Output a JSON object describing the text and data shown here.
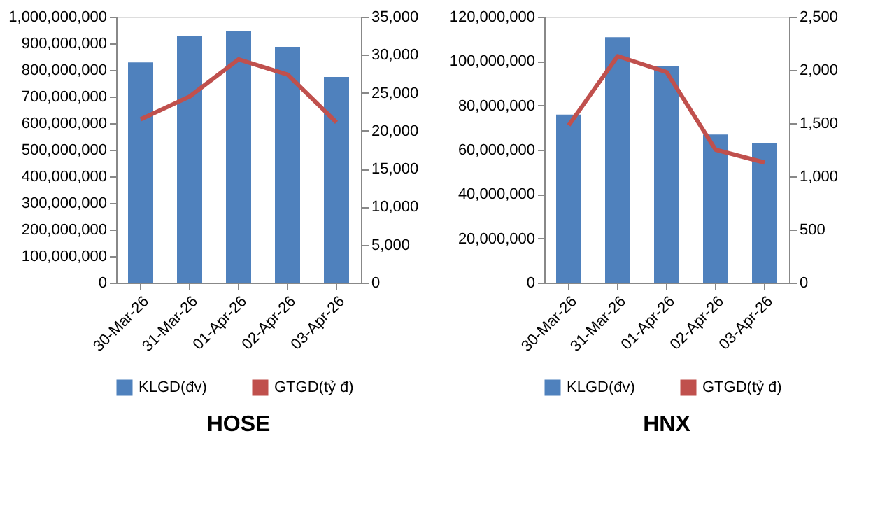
{
  "chart_data": [
    {
      "type": "bar",
      "title": "HOSE",
      "categories": [
        "30-Mar-26",
        "31-Mar-26",
        "01-Apr-26",
        "02-Apr-26",
        "03-Apr-26"
      ],
      "series": [
        {
          "name": "KLGD(đv)",
          "color": "#4f81bd",
          "values": [
            828000000,
            928000000,
            946000000,
            887000000,
            774000000
          ]
        },
        {
          "name": "GTGD(tỷ  đ)",
          "color": "#c0504d",
          "type": "line",
          "axis": "y2",
          "values": [
            21500,
            24500,
            29400,
            27400,
            21100
          ]
        }
      ],
      "ylim": [
        0,
        1000000000
      ],
      "yticks": [
        0,
        {
          "value": 100000000,
          "label": "100,000,000"
        },
        {
          "value": 200000000,
          "label": "200,000,000"
        },
        {
          "value": 300000000,
          "label": "300,000,000"
        },
        {
          "value": 400000000,
          "label": "400,000,000"
        },
        {
          "value": 500000000,
          "label": "500,000,000"
        },
        {
          "value": 600000000,
          "label": "600,000,000"
        },
        {
          "value": 700000000,
          "label": "700,000,000"
        },
        {
          "value": 800000000,
          "label": "800,000,000"
        },
        {
          "value": 900000000,
          "label": "900,000,000"
        },
        {
          "value": 1000000000,
          "label": "1,000,000,000"
        }
      ],
      "y2lim": [
        0,
        35000
      ],
      "y2ticks": [
        0,
        {
          "value": 5000,
          "label": "5,000"
        },
        {
          "value": 10000,
          "label": "10,000"
        },
        {
          "value": 15000,
          "label": "15,000"
        },
        {
          "value": 20000,
          "label": "20,000"
        },
        {
          "value": 25000,
          "label": "25,000"
        },
        {
          "value": 30000,
          "label": "30,000"
        },
        {
          "value": 35000,
          "label": "35,000"
        }
      ],
      "legend": "bottom",
      "grid": false
    },
    {
      "type": "bar",
      "title": "HNX",
      "categories": [
        "30-Mar-26",
        "31-Mar-26",
        "01-Apr-26",
        "02-Apr-26",
        "03-Apr-26"
      ],
      "series": [
        {
          "name": "KLGD(đv)",
          "color": "#4f81bd",
          "values": [
            75900000,
            110800000,
            97600000,
            66900000,
            63000000
          ]
        },
        {
          "name": "GTGD(tỷ  đ)",
          "color": "#c0504d",
          "type": "line",
          "axis": "y2",
          "values": [
            1480,
            2130,
            1980,
            1250,
            1130
          ]
        }
      ],
      "ylim": [
        0,
        120000000
      ],
      "yticks": [
        0,
        {
          "value": 20000000,
          "label": "20,000,000"
        },
        {
          "value": 40000000,
          "label": "40,000,000"
        },
        {
          "value": 60000000,
          "label": "60,000,000"
        },
        {
          "value": 80000000,
          "label": "80,000,000"
        },
        {
          "value": 100000000,
          "label": "100,000,000"
        },
        {
          "value": 120000000,
          "label": "120,000,000"
        }
      ],
      "y2lim": [
        0,
        2500
      ],
      "y2ticks": [
        0,
        500,
        {
          "value": 1000,
          "label": "1,000"
        },
        {
          "value": 1500,
          "label": "1,500"
        },
        {
          "value": 2000,
          "label": "2,000"
        },
        {
          "value": 2500,
          "label": "2,500"
        }
      ],
      "legend": "bottom",
      "grid": false
    }
  ]
}
